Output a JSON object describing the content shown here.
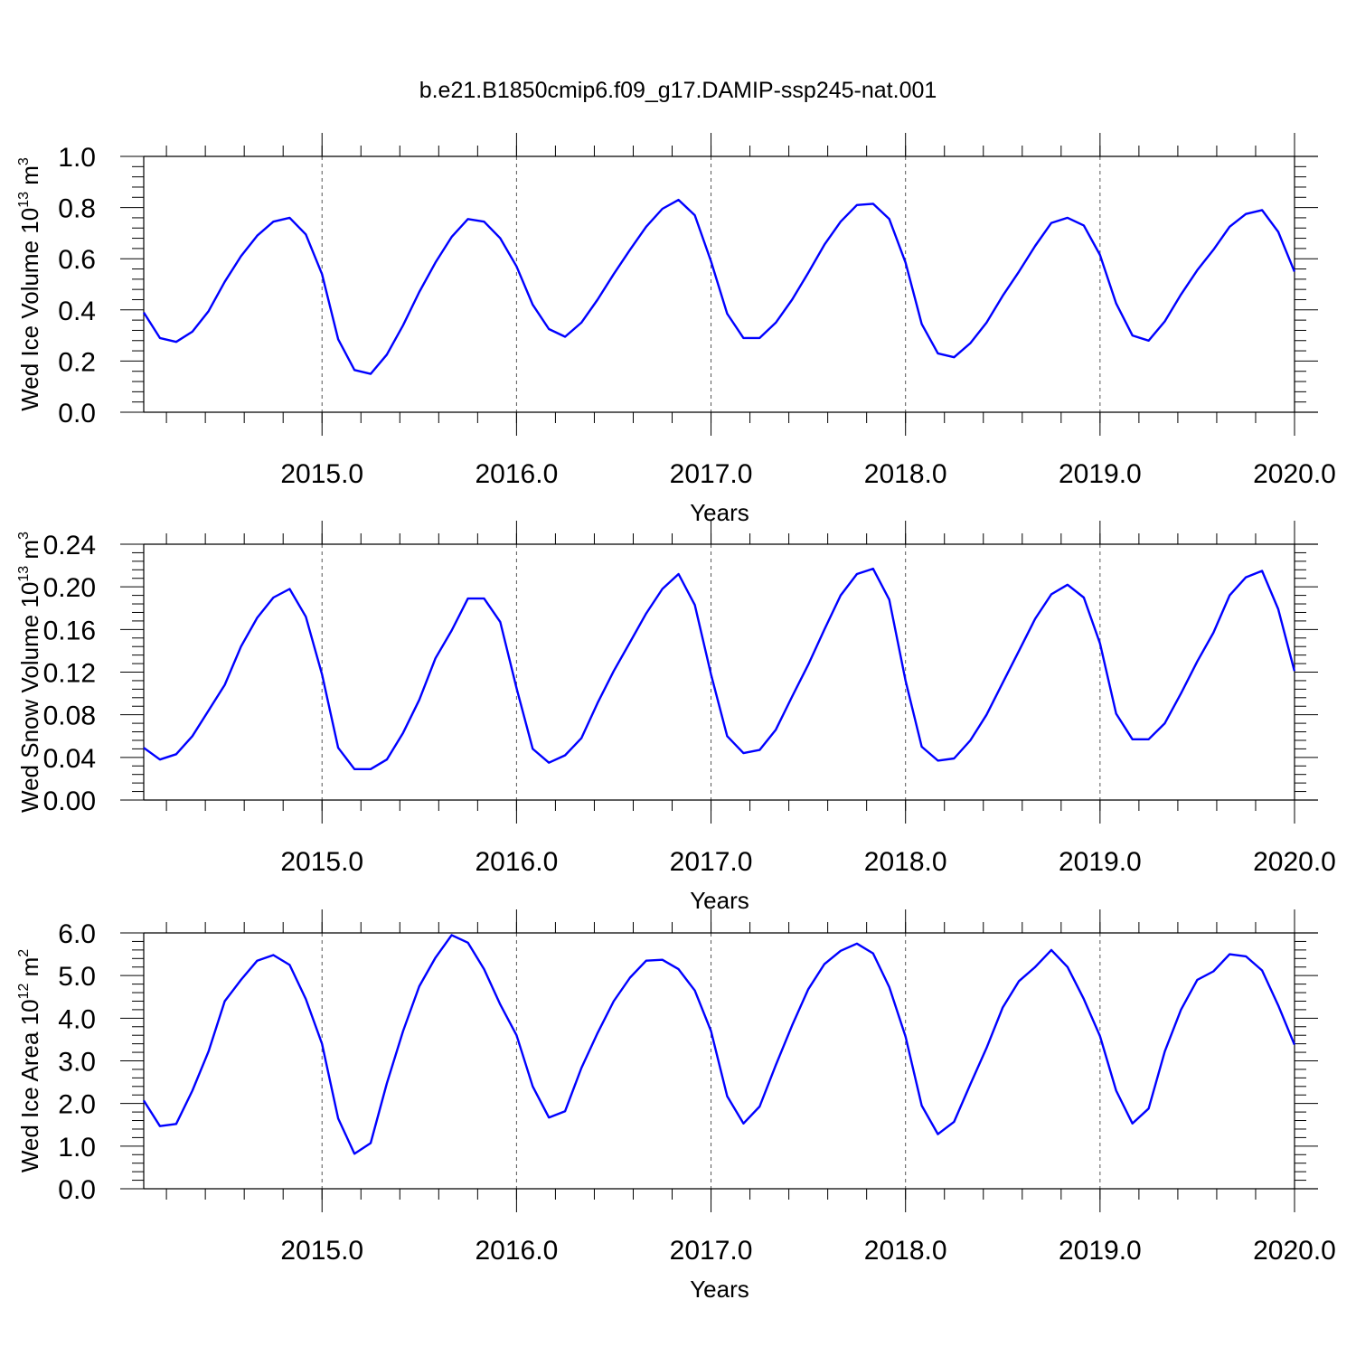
{
  "title": "b.e21.B1850cmip6.f09_g17.DAMIP-ssp245-nat.001",
  "line_color": "#0000ff",
  "chart_data": [
    {
      "type": "line",
      "xlabel": "Years",
      "ylabel": "Wed Ice Volume 10",
      "ylabel_exp": "13",
      "ylabel_unit": " m",
      "ylabel_unit_exp": "3",
      "xlim": [
        2014.0833,
        2020.0
      ],
      "ylim": [
        0.0,
        1.0
      ],
      "xticks": [
        2015.0,
        2016.0,
        2017.0,
        2018.0,
        2019.0,
        2020.0
      ],
      "xtick_labels": [
        "2015.0",
        "2016.0",
        "2017.0",
        "2018.0",
        "2019.0",
        "2020.0"
      ],
      "yticks": [
        0.0,
        0.2,
        0.4,
        0.6,
        0.8,
        1.0
      ],
      "ytick_labels": [
        "0.0",
        "0.2",
        "0.4",
        "0.6",
        "0.8",
        "1.0"
      ],
      "grid": "vertical dashed at years",
      "series": [
        {
          "x_start": 2014.0833,
          "x_step": 0.08333,
          "values": [
            0.39,
            0.29,
            0.275,
            0.315,
            0.395,
            0.51,
            0.61,
            0.69,
            0.745,
            0.76,
            0.695,
            0.54,
            0.285,
            0.165,
            0.15,
            0.225,
            0.34,
            0.47,
            0.585,
            0.685,
            0.755,
            0.745,
            0.68,
            0.57,
            0.42,
            0.325,
            0.295,
            0.35,
            0.44,
            0.54,
            0.635,
            0.725,
            0.795,
            0.83,
            0.77,
            0.59,
            0.385,
            0.29,
            0.29,
            0.35,
            0.44,
            0.545,
            0.655,
            0.745,
            0.81,
            0.815,
            0.755,
            0.585,
            0.345,
            0.23,
            0.215,
            0.27,
            0.35,
            0.455,
            0.55,
            0.65,
            0.74,
            0.76,
            0.73,
            0.615,
            0.425,
            0.3,
            0.28,
            0.355,
            0.46,
            0.555,
            0.635,
            0.725,
            0.775,
            0.79,
            0.705,
            0.55
          ]
        }
      ]
    },
    {
      "type": "line",
      "xlabel": "Years",
      "ylabel": "Wed Snow Volume 10",
      "ylabel_exp": "13",
      "ylabel_unit": " m",
      "ylabel_unit_exp": "3",
      "xlim": [
        2014.0833,
        2020.0
      ],
      "ylim": [
        0.0,
        0.24
      ],
      "xticks": [
        2015.0,
        2016.0,
        2017.0,
        2018.0,
        2019.0,
        2020.0
      ],
      "xtick_labels": [
        "2015.0",
        "2016.0",
        "2017.0",
        "2018.0",
        "2019.0",
        "2020.0"
      ],
      "yticks": [
        0.0,
        0.04,
        0.08,
        0.12,
        0.16,
        0.2,
        0.24
      ],
      "ytick_labels": [
        "0.00",
        "0.04",
        "0.08",
        "0.12",
        "0.16",
        "0.20",
        "0.24"
      ],
      "grid": "vertical dashed at years",
      "series": [
        {
          "x_start": 2014.0833,
          "x_step": 0.08333,
          "values": [
            0.049,
            0.038,
            0.043,
            0.06,
            0.084,
            0.108,
            0.144,
            0.171,
            0.19,
            0.198,
            0.172,
            0.118,
            0.049,
            0.029,
            0.029,
            0.038,
            0.063,
            0.094,
            0.133,
            0.159,
            0.189,
            0.189,
            0.167,
            0.105,
            0.048,
            0.035,
            0.042,
            0.058,
            0.091,
            0.121,
            0.148,
            0.175,
            0.198,
            0.212,
            0.183,
            0.118,
            0.06,
            0.044,
            0.047,
            0.066,
            0.097,
            0.127,
            0.16,
            0.192,
            0.212,
            0.217,
            0.188,
            0.112,
            0.05,
            0.037,
            0.039,
            0.056,
            0.08,
            0.11,
            0.14,
            0.17,
            0.193,
            0.202,
            0.19,
            0.147,
            0.081,
            0.057,
            0.057,
            0.072,
            0.1,
            0.13,
            0.157,
            0.192,
            0.209,
            0.215,
            0.179,
            0.121
          ]
        }
      ]
    },
    {
      "type": "line",
      "xlabel": "Years",
      "ylabel": "Wed Ice Area 10",
      "ylabel_exp": "12",
      "ylabel_unit": " m",
      "ylabel_unit_exp": "2",
      "xlim": [
        2014.0833,
        2020.0
      ],
      "ylim": [
        0.0,
        6.0
      ],
      "xticks": [
        2015.0,
        2016.0,
        2017.0,
        2018.0,
        2019.0,
        2020.0
      ],
      "xtick_labels": [
        "2015.0",
        "2016.0",
        "2017.0",
        "2018.0",
        "2019.0",
        "2020.0"
      ],
      "yticks": [
        0.0,
        1.0,
        2.0,
        3.0,
        4.0,
        5.0,
        6.0
      ],
      "ytick_labels": [
        "0.0",
        "1.0",
        "2.0",
        "3.0",
        "4.0",
        "5.0",
        "6.0"
      ],
      "grid": "vertical dashed at years",
      "series": [
        {
          "x_start": 2014.0833,
          "x_step": 0.08333,
          "values": [
            2.07,
            1.47,
            1.52,
            2.3,
            3.22,
            4.4,
            4.9,
            5.35,
            5.48,
            5.25,
            4.45,
            3.4,
            1.65,
            0.82,
            1.07,
            2.47,
            3.7,
            4.75,
            5.42,
            5.95,
            5.77,
            5.15,
            4.32,
            3.6,
            2.4,
            1.67,
            1.82,
            2.83,
            3.65,
            4.4,
            4.95,
            5.35,
            5.37,
            5.15,
            4.65,
            3.7,
            2.17,
            1.53,
            1.93,
            2.9,
            3.83,
            4.68,
            5.27,
            5.58,
            5.75,
            5.52,
            4.73,
            3.57,
            1.95,
            1.28,
            1.57,
            2.45,
            3.3,
            4.25,
            4.87,
            5.2,
            5.6,
            5.2,
            4.45,
            3.58,
            2.3,
            1.53,
            1.88,
            3.22,
            4.2,
            4.9,
            5.1,
            5.5,
            5.45,
            5.12,
            4.3,
            3.38
          ]
        }
      ]
    }
  ]
}
